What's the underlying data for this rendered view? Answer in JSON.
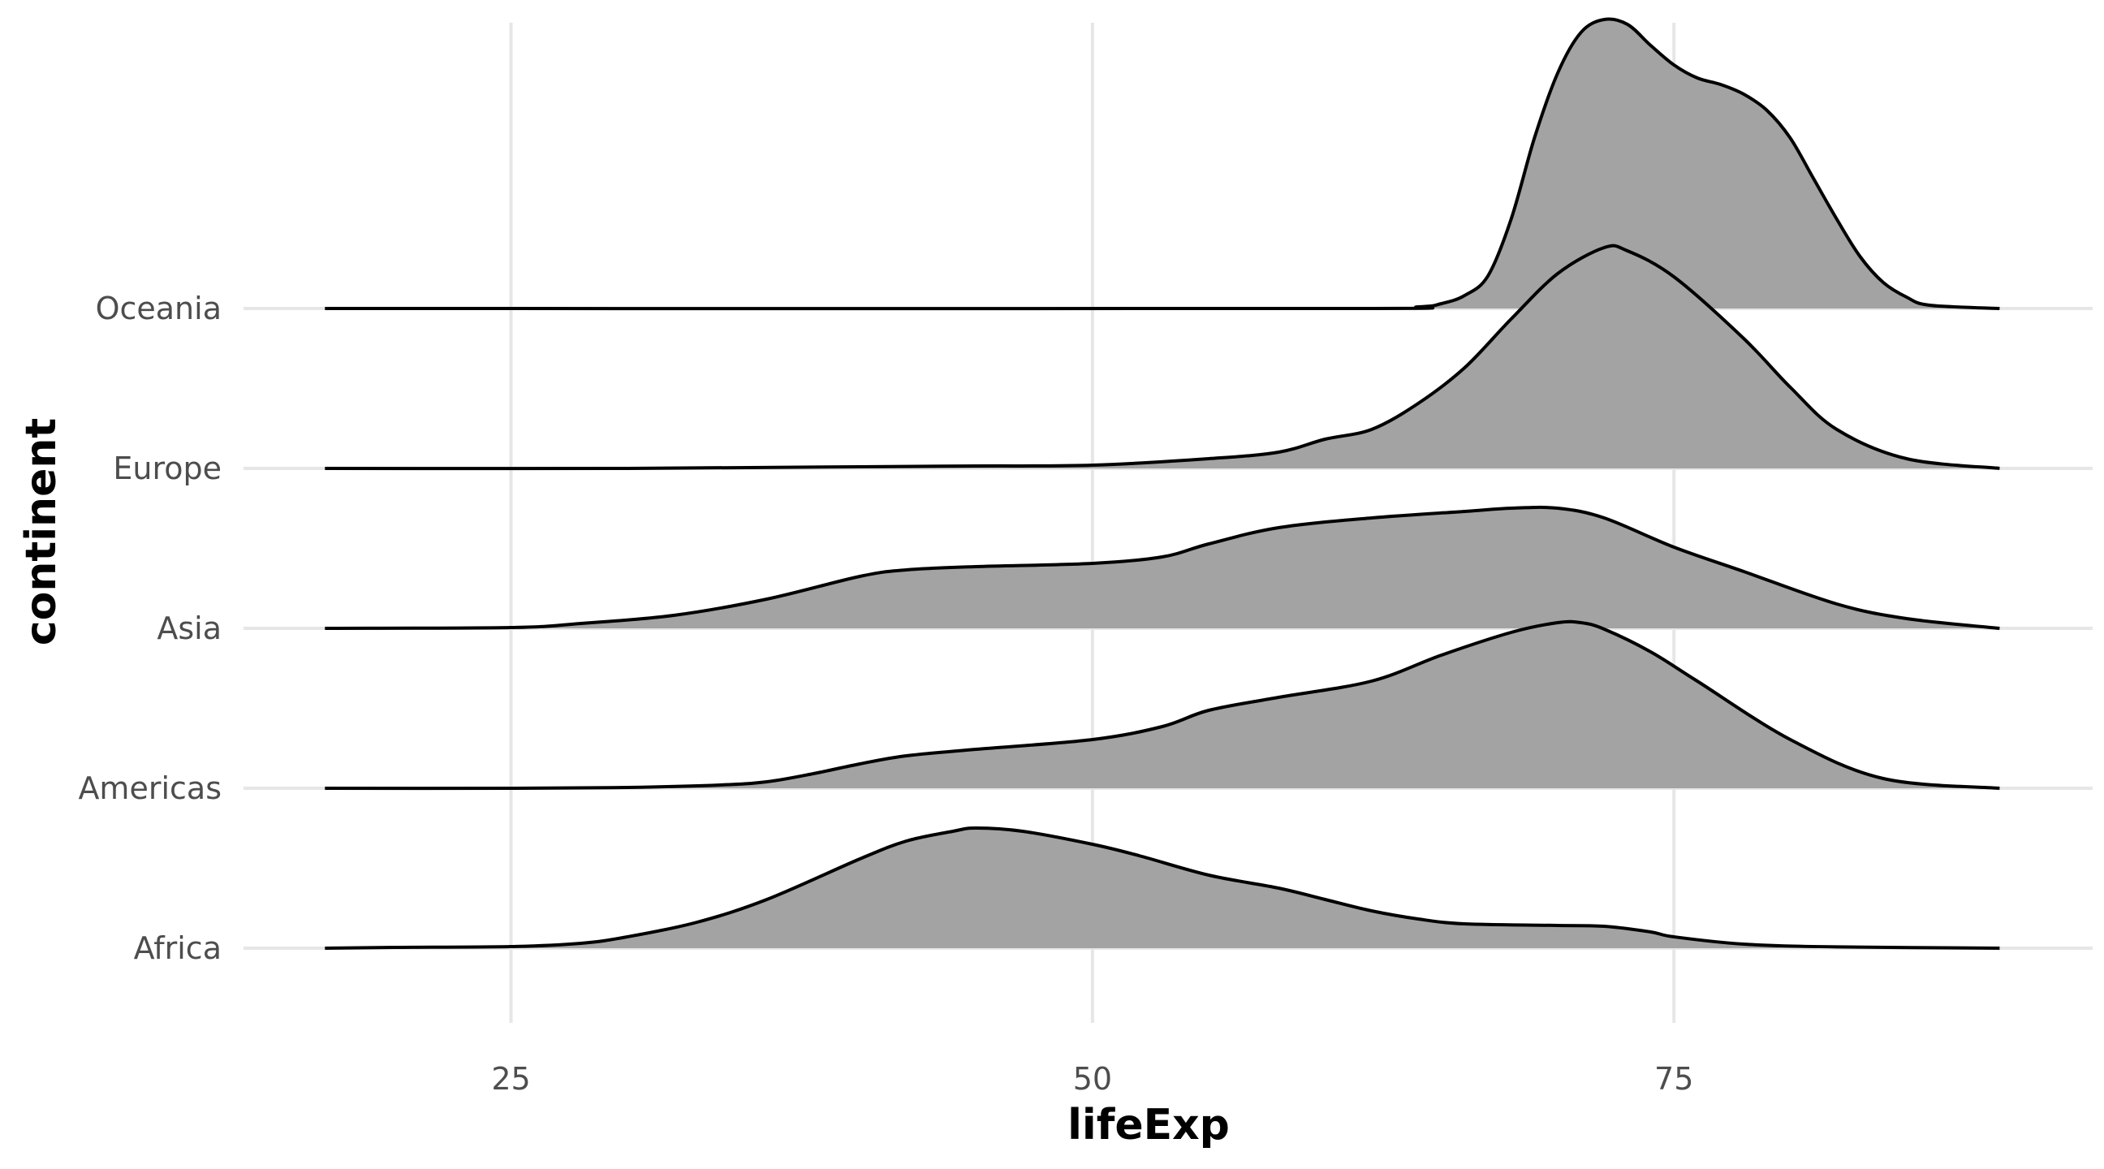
{
  "chart_data": {
    "type": "ridgeline",
    "xlabel": "lifeExp",
    "ylabel": "continent",
    "xlim": [
      13.5,
      93
    ],
    "x_ticks": [
      25,
      50,
      75
    ],
    "x_tick_labels": [
      "25",
      "50",
      "75"
    ],
    "grid": true,
    "fill_color": "#a3a3a3",
    "line_color": "#000000",
    "categories": [
      "Africa",
      "Americas",
      "Asia",
      "Europe",
      "Oceania"
    ],
    "series": [
      {
        "name": "Africa",
        "x": [
          17,
          20,
          25,
          28,
          30,
          33,
          36,
          40,
          42,
          44,
          45,
          47,
          50,
          52,
          55,
          58,
          60,
          62,
          64,
          66,
          70,
          72,
          74,
          75,
          78,
          82,
          89
        ],
        "density": [
          0,
          0.005,
          0.01,
          0.03,
          0.07,
          0.16,
          0.3,
          0.55,
          0.66,
          0.72,
          0.74,
          0.72,
          0.64,
          0.57,
          0.45,
          0.37,
          0.3,
          0.23,
          0.18,
          0.15,
          0.14,
          0.135,
          0.1,
          0.07,
          0.025,
          0.008,
          0
        ]
      },
      {
        "name": "Americas",
        "x": [
          17,
          25,
          30,
          34,
          36,
          38,
          40,
          42,
          45,
          50,
          53,
          55,
          58,
          62,
          65,
          68,
          70,
          71,
          72,
          74,
          76,
          80,
          84,
          89
        ],
        "density": [
          0,
          0,
          0.005,
          0.02,
          0.04,
          0.09,
          0.15,
          0.2,
          0.24,
          0.3,
          0.38,
          0.48,
          0.56,
          0.66,
          0.82,
          0.96,
          1.02,
          1.02,
          0.98,
          0.84,
          0.66,
          0.3,
          0.06,
          0
        ]
      },
      {
        "name": "Asia",
        "x": [
          17,
          25,
          28,
          32,
          36,
          40,
          42,
          45,
          50,
          53,
          55,
          58,
          62,
          66,
          68,
          70,
          72,
          75,
          78,
          82,
          85,
          89
        ],
        "density": [
          0,
          0.005,
          0.03,
          0.08,
          0.18,
          0.32,
          0.36,
          0.38,
          0.4,
          0.44,
          0.52,
          0.62,
          0.68,
          0.72,
          0.74,
          0.74,
          0.68,
          0.5,
          0.35,
          0.15,
          0.06,
          0
        ]
      },
      {
        "name": "Europe",
        "x": [
          17,
          30,
          40,
          45,
          50,
          55,
          58,
          60,
          62,
          64,
          66,
          68,
          70,
          72,
          73,
          75,
          78,
          80,
          82,
          85,
          89
        ],
        "density": [
          0,
          0,
          0.01,
          0.015,
          0.02,
          0.06,
          0.1,
          0.18,
          0.24,
          0.4,
          0.62,
          0.92,
          1.2,
          1.36,
          1.34,
          1.18,
          0.8,
          0.5,
          0.24,
          0.06,
          0
        ]
      },
      {
        "name": "Oceania",
        "x": [
          17,
          60,
          64,
          65,
          66,
          67,
          68,
          69,
          70,
          71,
          72,
          73,
          74,
          75,
          76,
          77,
          78,
          79,
          80,
          81,
          82,
          83,
          84,
          85,
          86,
          89
        ],
        "density": [
          0,
          0,
          0.01,
          0.03,
          0.08,
          0.2,
          0.55,
          1.05,
          1.45,
          1.7,
          1.78,
          1.75,
          1.62,
          1.5,
          1.42,
          1.38,
          1.32,
          1.22,
          1.05,
          0.8,
          0.55,
          0.32,
          0.16,
          0.07,
          0.02,
          0
        ]
      }
    ]
  }
}
